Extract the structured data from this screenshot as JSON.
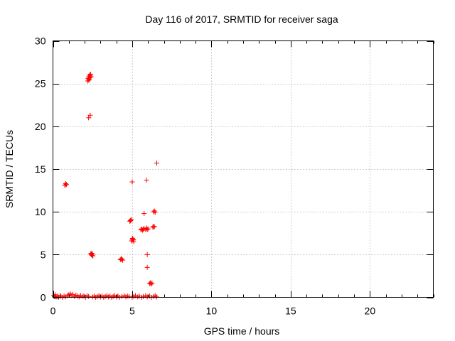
{
  "chart_data": {
    "type": "scatter",
    "title": "Day 116 of 2017, SRMTID for receiver saga",
    "xlabel": "GPS time / hours",
    "ylabel": "SRMTID / TECUs",
    "xlim": [
      0,
      24
    ],
    "ylim": [
      0,
      30
    ],
    "xticks": [
      0,
      5,
      10,
      15,
      20
    ],
    "yticks": [
      0,
      5,
      10,
      15,
      20,
      25,
      30
    ],
    "xtick_labels": [
      "0",
      "5",
      "10",
      "15",
      "20"
    ],
    "ytick_labels": [
      "0",
      "5",
      "10",
      "15",
      "20",
      "25",
      "30"
    ],
    "grid": true,
    "marker": "+",
    "series": [
      {
        "name": "SRMTID",
        "color": "#ff0000",
        "points": [
          [
            0.05,
            0.2
          ],
          [
            0.1,
            0.1
          ],
          [
            0.15,
            0.3
          ],
          [
            0.2,
            0.05
          ],
          [
            0.3,
            0.15
          ],
          [
            0.35,
            0.0
          ],
          [
            0.45,
            0.2
          ],
          [
            0.5,
            0.1
          ],
          [
            0.6,
            0.0
          ],
          [
            0.7,
            0.15
          ],
          [
            0.8,
            0.05
          ],
          [
            0.9,
            0.2
          ],
          [
            1.0,
            0.3
          ],
          [
            1.1,
            0.4
          ],
          [
            1.15,
            0.2
          ],
          [
            1.25,
            0.35
          ],
          [
            1.35,
            0.1
          ],
          [
            1.45,
            0.25
          ],
          [
            1.55,
            0.15
          ],
          [
            1.65,
            0.05
          ],
          [
            1.75,
            0.2
          ],
          [
            1.85,
            0.1
          ],
          [
            1.95,
            0.15
          ],
          [
            2.05,
            0.0
          ],
          [
            2.15,
            0.2
          ],
          [
            2.25,
            0.1
          ],
          [
            2.5,
            0.05
          ],
          [
            2.6,
            0.15
          ],
          [
            2.7,
            0.0
          ],
          [
            2.8,
            0.1
          ],
          [
            2.9,
            0.2
          ],
          [
            3.0,
            0.05
          ],
          [
            3.1,
            0.15
          ],
          [
            3.2,
            0.0
          ],
          [
            3.3,
            0.1
          ],
          [
            3.4,
            0.2
          ],
          [
            3.5,
            0.05
          ],
          [
            3.6,
            0.15
          ],
          [
            3.7,
            0.0
          ],
          [
            3.8,
            0.1
          ],
          [
            3.9,
            0.2
          ],
          [
            4.0,
            0.05
          ],
          [
            4.1,
            0.15
          ],
          [
            4.2,
            0.0
          ],
          [
            4.35,
            0.1
          ],
          [
            4.5,
            0.2
          ],
          [
            4.6,
            0.05
          ],
          [
            4.7,
            0.15
          ],
          [
            4.8,
            0.1
          ],
          [
            5.0,
            0.0
          ],
          [
            5.1,
            0.1
          ],
          [
            5.2,
            0.2
          ],
          [
            5.35,
            0.05
          ],
          [
            5.45,
            0.15
          ],
          [
            5.6,
            0.0
          ],
          [
            5.7,
            0.1
          ],
          [
            5.85,
            0.2
          ],
          [
            5.95,
            0.05
          ],
          [
            6.1,
            0.15
          ],
          [
            6.2,
            0.0
          ],
          [
            6.35,
            0.1
          ],
          [
            6.45,
            0.2
          ],
          [
            6.55,
            0.05
          ],
          [
            0.75,
            13.1
          ],
          [
            0.8,
            13.3
          ],
          [
            0.85,
            13.2
          ],
          [
            0.78,
            13.15
          ],
          [
            2.2,
            25.3
          ],
          [
            2.22,
            25.6
          ],
          [
            2.25,
            25.8
          ],
          [
            2.28,
            25.5
          ],
          [
            2.3,
            26.0
          ],
          [
            2.33,
            25.7
          ],
          [
            2.35,
            25.9
          ],
          [
            2.38,
            26.1
          ],
          [
            2.4,
            25.8
          ],
          [
            2.26,
            25.4
          ],
          [
            2.25,
            21.0
          ],
          [
            2.35,
            21.3
          ],
          [
            2.38,
            5.1
          ],
          [
            2.42,
            5.0
          ],
          [
            2.46,
            4.9
          ],
          [
            2.5,
            5.05
          ],
          [
            2.44,
            5.15
          ],
          [
            2.52,
            4.85
          ],
          [
            4.25,
            4.4
          ],
          [
            4.3,
            4.5
          ],
          [
            4.35,
            4.45
          ],
          [
            4.4,
            4.35
          ],
          [
            4.85,
            8.9
          ],
          [
            4.9,
            9.0
          ],
          [
            4.95,
            9.1
          ],
          [
            4.88,
            8.95
          ],
          [
            4.95,
            6.6
          ],
          [
            5.0,
            6.8
          ],
          [
            5.05,
            6.7
          ],
          [
            5.1,
            6.5
          ],
          [
            5.02,
            6.9
          ],
          [
            5.08,
            6.75
          ],
          [
            5.0,
            13.5
          ],
          [
            5.55,
            7.9
          ],
          [
            5.6,
            8.0
          ],
          [
            5.65,
            7.85
          ],
          [
            5.7,
            7.95
          ],
          [
            5.75,
            8.05
          ],
          [
            5.85,
            7.9
          ],
          [
            5.9,
            8.1
          ],
          [
            5.95,
            7.95
          ],
          [
            6.0,
            8.0
          ],
          [
            5.75,
            9.8
          ],
          [
            5.9,
            13.7
          ],
          [
            5.95,
            5.0
          ],
          [
            5.95,
            3.5
          ],
          [
            6.1,
            1.6
          ],
          [
            6.15,
            1.7
          ],
          [
            6.2,
            1.55
          ],
          [
            6.25,
            1.65
          ],
          [
            6.3,
            8.2
          ],
          [
            6.35,
            8.3
          ],
          [
            6.4,
            8.25
          ],
          [
            6.35,
            10.0
          ],
          [
            6.4,
            10.1
          ],
          [
            6.45,
            9.95
          ],
          [
            6.55,
            15.7
          ]
        ]
      }
    ]
  }
}
